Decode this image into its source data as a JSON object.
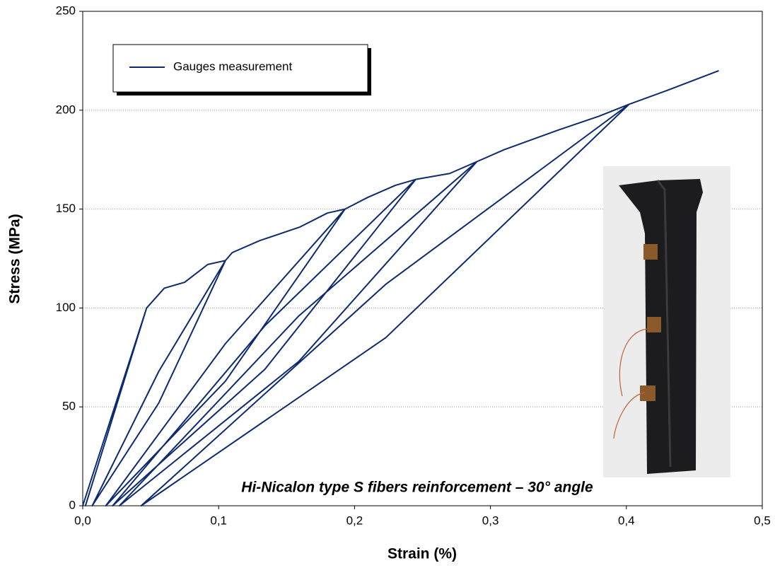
{
  "chart_data": {
    "type": "line",
    "xlabel": "Strain (%)",
    "ylabel": "Stress (MPa)",
    "annotation": "Hi-Nicalon type S fibers reinforcement – 30° angle",
    "xlim": [
      0,
      0.5
    ],
    "ylim": [
      0,
      250
    ],
    "xticks": [
      {
        "value": 0,
        "label": "0,0"
      },
      {
        "value": 0.1,
        "label": "0,1"
      },
      {
        "value": 0.2,
        "label": "0,2"
      },
      {
        "value": 0.3,
        "label": "0,3"
      },
      {
        "value": 0.4,
        "label": "0,4"
      },
      {
        "value": 0.5,
        "label": "0,5"
      }
    ],
    "yticks": [
      0,
      50,
      100,
      150,
      200,
      250
    ],
    "grid": true,
    "legend": "upper left",
    "series": [
      {
        "name": "Gauges measurement",
        "color": "#0d2a6e",
        "x": [
          0,
          0.047,
          0.002,
          0.047,
          0.06,
          0.075,
          0.092,
          0.105,
          0.056,
          0.007,
          0.056,
          0.105,
          0.11,
          0.13,
          0.16,
          0.18,
          0.193,
          0.105,
          0.017,
          0.105,
          0.193,
          0.21,
          0.23,
          0.245,
          0.134,
          0.022,
          0.134,
          0.245,
          0.27,
          0.29,
          0.159,
          0.027,
          0.159,
          0.29,
          0.31,
          0.35,
          0.38,
          0.402,
          0.223,
          0.043,
          0.223,
          0.402,
          0.43,
          0.468
        ],
        "values": [
          0,
          100,
          0,
          100,
          110,
          113,
          122,
          124,
          52,
          0,
          68,
          124,
          128,
          134,
          141,
          148,
          150,
          63,
          0,
          82,
          150,
          156,
          162,
          165,
          69,
          0,
          91,
          165,
          168,
          174,
          73,
          0,
          96,
          174,
          180,
          190,
          197,
          203,
          85,
          0,
          112,
          203,
          210,
          220
        ]
      }
    ]
  }
}
